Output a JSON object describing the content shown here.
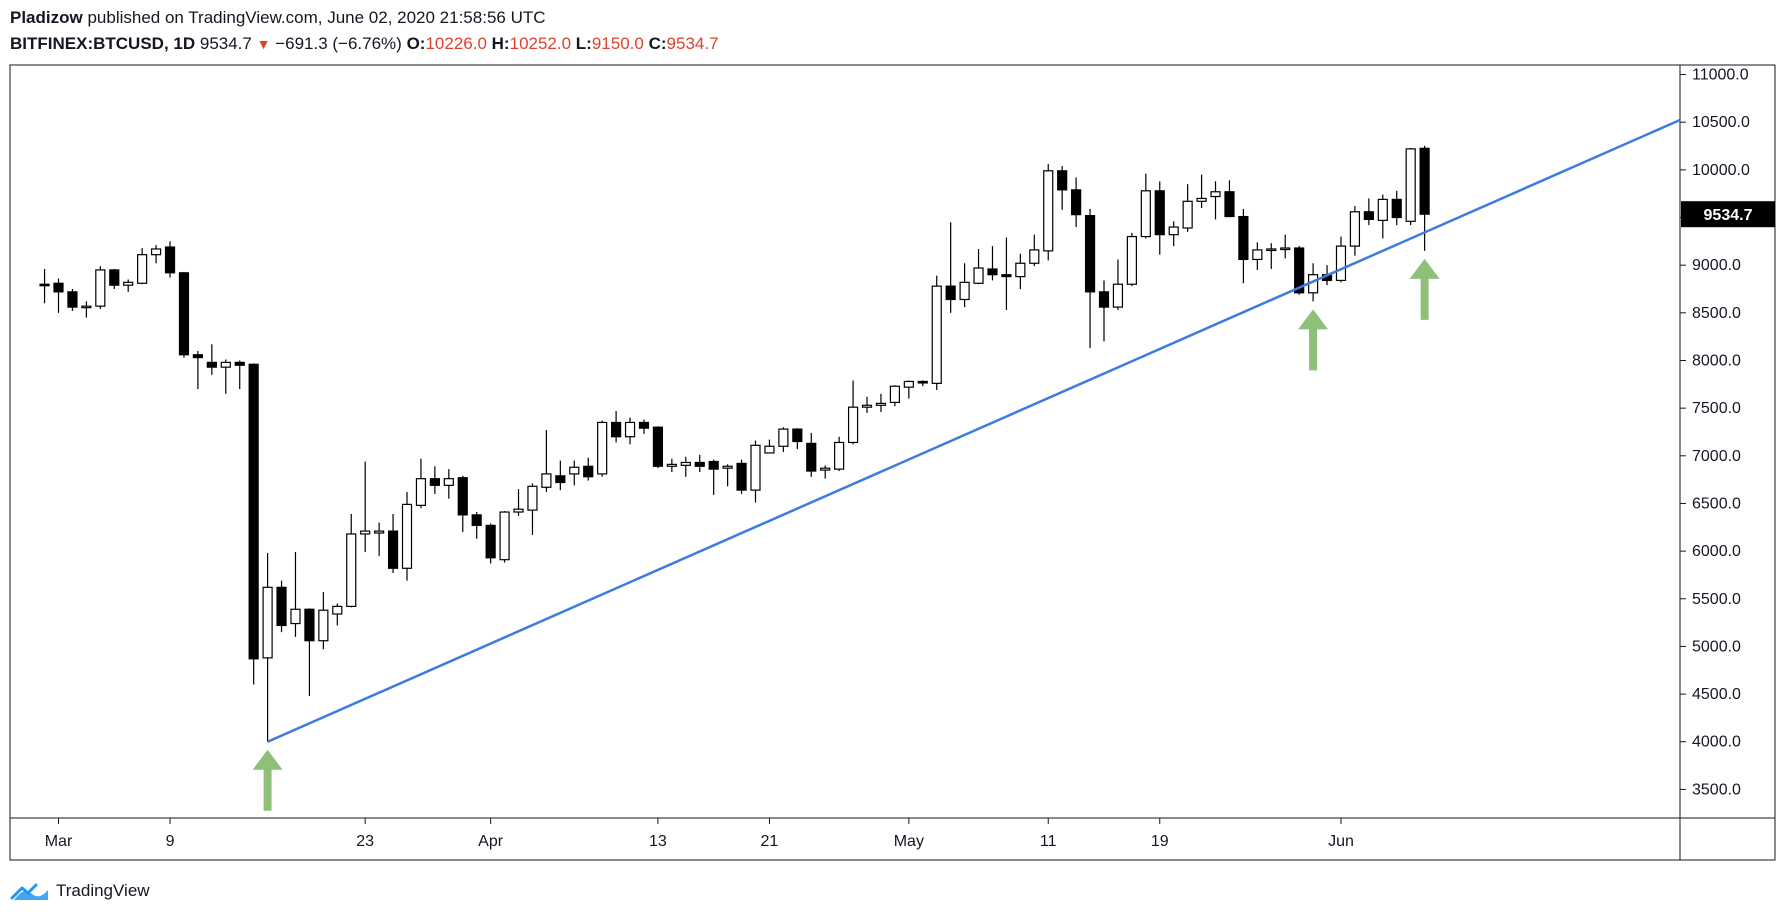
{
  "header": {
    "author": "Pladizow",
    "published_text": "published on TradingView.com, June 02, 2020 21:58:56 UTC",
    "symbol": "BITFINEX:BTCUSD, 1D",
    "last": "9534.7",
    "change_arrow": "▼",
    "change": "−691.3 (−6.76%)",
    "open_label": "O:",
    "open": "10226.0",
    "high_label": "H:",
    "high": "10252.0",
    "low_label": "L:",
    "low": "9150.0",
    "close_label": "C:",
    "close": "9534.7"
  },
  "footer": {
    "brand": "TradingView",
    "logo_icon": "tradingview-logo-icon"
  },
  "colors": {
    "up_body": "#ffffff",
    "down_body": "#000000",
    "wick": "#000000",
    "trendline": "#3c7be0",
    "arrow": "#8ec07a",
    "price_tag_bg": "#000000"
  },
  "chart_data": {
    "type": "candlestick",
    "symbol": "BITFINEX:BTCUSD",
    "interval": "1D",
    "ylim": [
      3200,
      11100
    ],
    "y_axis_position": "right",
    "y_ticks": [
      "11000.0",
      "10500.0",
      "10000.0",
      "9500.0",
      "9000.0",
      "8500.0",
      "8000.0",
      "7500.0",
      "7000.0",
      "6500.0",
      "6000.0",
      "5500.0",
      "5000.0",
      "4500.0",
      "4000.0",
      "3500.0"
    ],
    "x_labels": [
      {
        "label": "Mar",
        "date": "2020-03-01"
      },
      {
        "label": "9",
        "date": "2020-03-09"
      },
      {
        "label": "23",
        "date": "2020-03-23"
      },
      {
        "label": "Apr",
        "date": "2020-04-01"
      },
      {
        "label": "13",
        "date": "2020-04-13"
      },
      {
        "label": "21",
        "date": "2020-04-21"
      },
      {
        "label": "May",
        "date": "2020-05-01"
      },
      {
        "label": "11",
        "date": "2020-05-11"
      },
      {
        "label": "19",
        "date": "2020-05-19"
      },
      {
        "label": "Jun",
        "date": "2020-06-01"
      }
    ],
    "last_price_label": "9534.7",
    "candles": [
      {
        "date": "2020-02-29",
        "o": 8800,
        "h": 8960,
        "l": 8600,
        "c": 8790
      },
      {
        "date": "2020-03-01",
        "o": 8810,
        "h": 8860,
        "l": 8500,
        "c": 8720
      },
      {
        "date": "2020-03-02",
        "o": 8720,
        "h": 8750,
        "l": 8520,
        "c": 8560
      },
      {
        "date": "2020-03-03",
        "o": 8560,
        "h": 8620,
        "l": 8450,
        "c": 8570
      },
      {
        "date": "2020-03-04",
        "o": 8570,
        "h": 8990,
        "l": 8540,
        "c": 8950
      },
      {
        "date": "2020-03-05",
        "o": 8950,
        "h": 8960,
        "l": 8750,
        "c": 8790
      },
      {
        "date": "2020-03-06",
        "o": 8790,
        "h": 8850,
        "l": 8720,
        "c": 8820
      },
      {
        "date": "2020-03-07",
        "o": 8810,
        "h": 9180,
        "l": 8800,
        "c": 9110
      },
      {
        "date": "2020-03-08",
        "o": 9110,
        "h": 9210,
        "l": 9020,
        "c": 9170
      },
      {
        "date": "2020-03-09",
        "o": 9190,
        "h": 9250,
        "l": 8870,
        "c": 8920
      },
      {
        "date": "2020-03-10",
        "o": 8920,
        "h": 8930,
        "l": 8030,
        "c": 8060
      },
      {
        "date": "2020-03-11",
        "o": 8060,
        "h": 8100,
        "l": 7700,
        "c": 8030
      },
      {
        "date": "2020-03-12",
        "o": 7980,
        "h": 8170,
        "l": 7850,
        "c": 7930
      },
      {
        "date": "2020-03-13",
        "o": 7930,
        "h": 8010,
        "l": 7650,
        "c": 7980
      },
      {
        "date": "2020-03-14",
        "o": 7980,
        "h": 8000,
        "l": 7700,
        "c": 7950
      },
      {
        "date": "2020-03-15",
        "o": 7960,
        "h": 7970,
        "l": 4600,
        "c": 4870
      },
      {
        "date": "2020-03-16",
        "o": 4880,
        "h": 5980,
        "l": 4000,
        "c": 5620
      },
      {
        "date": "2020-03-17",
        "o": 5620,
        "h": 5690,
        "l": 5150,
        "c": 5220
      },
      {
        "date": "2020-03-18",
        "o": 5240,
        "h": 5990,
        "l": 5100,
        "c": 5390
      },
      {
        "date": "2020-03-19",
        "o": 5390,
        "h": 5400,
        "l": 4480,
        "c": 5060
      },
      {
        "date": "2020-03-20",
        "o": 5060,
        "h": 5570,
        "l": 4970,
        "c": 5380
      },
      {
        "date": "2020-03-21",
        "o": 5340,
        "h": 5450,
        "l": 5220,
        "c": 5420
      },
      {
        "date": "2020-03-22",
        "o": 5420,
        "h": 6390,
        "l": 5410,
        "c": 6180
      },
      {
        "date": "2020-03-23",
        "o": 6180,
        "h": 6940,
        "l": 5990,
        "c": 6210
      },
      {
        "date": "2020-03-24",
        "o": 6190,
        "h": 6300,
        "l": 5950,
        "c": 6210
      },
      {
        "date": "2020-03-25",
        "o": 6210,
        "h": 6390,
        "l": 5770,
        "c": 5820
      },
      {
        "date": "2020-03-26",
        "o": 5820,
        "h": 6620,
        "l": 5690,
        "c": 6490
      },
      {
        "date": "2020-03-27",
        "o": 6480,
        "h": 6970,
        "l": 6450,
        "c": 6760
      },
      {
        "date": "2020-03-28",
        "o": 6760,
        "h": 6890,
        "l": 6600,
        "c": 6690
      },
      {
        "date": "2020-03-29",
        "o": 6690,
        "h": 6860,
        "l": 6550,
        "c": 6760
      },
      {
        "date": "2020-03-30",
        "o": 6770,
        "h": 6790,
        "l": 6200,
        "c": 6380
      },
      {
        "date": "2020-03-31",
        "o": 6380,
        "h": 6410,
        "l": 6130,
        "c": 6270
      },
      {
        "date": "2020-04-01",
        "o": 6270,
        "h": 6290,
        "l": 5870,
        "c": 5930
      },
      {
        "date": "2020-04-02",
        "o": 5910,
        "h": 6420,
        "l": 5880,
        "c": 6410
      },
      {
        "date": "2020-04-03",
        "o": 6410,
        "h": 6650,
        "l": 6370,
        "c": 6440
      },
      {
        "date": "2020-04-04",
        "o": 6430,
        "h": 6710,
        "l": 6170,
        "c": 6680
      },
      {
        "date": "2020-04-05",
        "o": 6670,
        "h": 7270,
        "l": 6620,
        "c": 6810
      },
      {
        "date": "2020-04-06",
        "o": 6790,
        "h": 6950,
        "l": 6640,
        "c": 6720
      },
      {
        "date": "2020-04-07",
        "o": 6810,
        "h": 6950,
        "l": 6690,
        "c": 6880
      },
      {
        "date": "2020-04-08",
        "o": 6890,
        "h": 6980,
        "l": 6740,
        "c": 6780
      },
      {
        "date": "2020-04-09",
        "o": 6810,
        "h": 7370,
        "l": 6780,
        "c": 7350
      },
      {
        "date": "2020-04-10",
        "o": 7350,
        "h": 7470,
        "l": 7140,
        "c": 7200
      },
      {
        "date": "2020-04-11",
        "o": 7200,
        "h": 7400,
        "l": 7120,
        "c": 7350
      },
      {
        "date": "2020-04-12",
        "o": 7350,
        "h": 7380,
        "l": 7230,
        "c": 7290
      },
      {
        "date": "2020-04-13",
        "o": 7300,
        "h": 7310,
        "l": 6870,
        "c": 6890
      },
      {
        "date": "2020-04-14",
        "o": 6890,
        "h": 6970,
        "l": 6830,
        "c": 6910
      },
      {
        "date": "2020-04-15",
        "o": 6900,
        "h": 6990,
        "l": 6780,
        "c": 6930
      },
      {
        "date": "2020-04-16",
        "o": 6930,
        "h": 7010,
        "l": 6830,
        "c": 6890
      },
      {
        "date": "2020-04-17",
        "o": 6940,
        "h": 6960,
        "l": 6590,
        "c": 6860
      },
      {
        "date": "2020-04-18",
        "o": 6870,
        "h": 6910,
        "l": 6680,
        "c": 6890
      },
      {
        "date": "2020-04-19",
        "o": 6920,
        "h": 6960,
        "l": 6600,
        "c": 6640
      },
      {
        "date": "2020-04-20",
        "o": 6640,
        "h": 7160,
        "l": 6510,
        "c": 7110
      },
      {
        "date": "2020-04-21",
        "o": 7030,
        "h": 7170,
        "l": 7030,
        "c": 7100
      },
      {
        "date": "2020-04-22",
        "o": 7100,
        "h": 7300,
        "l": 7040,
        "c": 7280
      },
      {
        "date": "2020-04-23",
        "o": 7280,
        "h": 7290,
        "l": 7070,
        "c": 7150
      },
      {
        "date": "2020-04-24",
        "o": 7130,
        "h": 7240,
        "l": 6780,
        "c": 6840
      },
      {
        "date": "2020-04-25",
        "o": 6850,
        "h": 6900,
        "l": 6760,
        "c": 6870
      },
      {
        "date": "2020-04-26",
        "o": 6860,
        "h": 7200,
        "l": 6840,
        "c": 7140
      },
      {
        "date": "2020-04-27",
        "o": 7140,
        "h": 7790,
        "l": 7120,
        "c": 7510
      },
      {
        "date": "2020-04-28",
        "o": 7510,
        "h": 7620,
        "l": 7450,
        "c": 7530
      },
      {
        "date": "2020-04-29",
        "o": 7530,
        "h": 7650,
        "l": 7460,
        "c": 7550
      },
      {
        "date": "2020-04-30",
        "o": 7560,
        "h": 7740,
        "l": 7520,
        "c": 7730
      },
      {
        "date": "2020-05-01",
        "o": 7720,
        "h": 7790,
        "l": 7600,
        "c": 7780
      },
      {
        "date": "2020-05-02",
        "o": 7780,
        "h": 7790,
        "l": 7730,
        "c": 7770
      },
      {
        "date": "2020-05-03",
        "o": 7760,
        "h": 8890,
        "l": 7690,
        "c": 8780
      },
      {
        "date": "2020-05-04",
        "o": 8780,
        "h": 9450,
        "l": 8500,
        "c": 8640
      },
      {
        "date": "2020-05-05",
        "o": 8640,
        "h": 9020,
        "l": 8560,
        "c": 8820
      },
      {
        "date": "2020-05-06",
        "o": 8810,
        "h": 9170,
        "l": 8800,
        "c": 8970
      },
      {
        "date": "2020-05-07",
        "o": 8960,
        "h": 9200,
        "l": 8840,
        "c": 8900
      },
      {
        "date": "2020-05-08",
        "o": 8900,
        "h": 9290,
        "l": 8530,
        "c": 8880
      },
      {
        "date": "2020-05-09",
        "o": 8880,
        "h": 9120,
        "l": 8750,
        "c": 9020
      },
      {
        "date": "2020-05-10",
        "o": 9020,
        "h": 9320,
        "l": 8990,
        "c": 9160
      },
      {
        "date": "2020-05-11",
        "o": 9150,
        "h": 10060,
        "l": 9050,
        "c": 9990
      },
      {
        "date": "2020-05-12",
        "o": 9990,
        "h": 10040,
        "l": 9580,
        "c": 9790
      },
      {
        "date": "2020-05-13",
        "o": 9790,
        "h": 9920,
        "l": 9400,
        "c": 9530
      },
      {
        "date": "2020-05-14",
        "o": 9520,
        "h": 9590,
        "l": 8130,
        "c": 8720
      },
      {
        "date": "2020-05-15",
        "o": 8720,
        "h": 8840,
        "l": 8200,
        "c": 8560
      },
      {
        "date": "2020-05-16",
        "o": 8560,
        "h": 9060,
        "l": 8530,
        "c": 8800
      },
      {
        "date": "2020-05-17",
        "o": 8800,
        "h": 9340,
        "l": 8780,
        "c": 9300
      },
      {
        "date": "2020-05-18",
        "o": 9300,
        "h": 9960,
        "l": 9280,
        "c": 9780
      },
      {
        "date": "2020-05-19",
        "o": 9780,
        "h": 9880,
        "l": 9110,
        "c": 9320
      },
      {
        "date": "2020-05-20",
        "o": 9320,
        "h": 9460,
        "l": 9200,
        "c": 9400
      },
      {
        "date": "2020-05-21",
        "o": 9390,
        "h": 9850,
        "l": 9350,
        "c": 9670
      },
      {
        "date": "2020-05-22",
        "o": 9670,
        "h": 9950,
        "l": 9600,
        "c": 9700
      },
      {
        "date": "2020-05-23",
        "o": 9720,
        "h": 9880,
        "l": 9480,
        "c": 9770
      },
      {
        "date": "2020-05-24",
        "o": 9770,
        "h": 9890,
        "l": 9530,
        "c": 9510
      },
      {
        "date": "2020-05-25",
        "o": 9510,
        "h": 9590,
        "l": 8810,
        "c": 9060
      },
      {
        "date": "2020-05-26",
        "o": 9060,
        "h": 9240,
        "l": 8950,
        "c": 9160
      },
      {
        "date": "2020-05-27",
        "o": 9160,
        "h": 9230,
        "l": 8960,
        "c": 9170
      },
      {
        "date": "2020-05-28",
        "o": 9170,
        "h": 9320,
        "l": 9070,
        "c": 9180
      },
      {
        "date": "2020-05-29",
        "o": 9180,
        "h": 9200,
        "l": 8690,
        "c": 8710
      },
      {
        "date": "2020-05-30",
        "o": 8710,
        "h": 9020,
        "l": 8620,
        "c": 8900
      },
      {
        "date": "2020-05-31",
        "o": 8900,
        "h": 9000,
        "l": 8790,
        "c": 8840
      },
      {
        "date": "2020-06-01",
        "o": 8840,
        "h": 9300,
        "l": 8820,
        "c": 9200
      },
      {
        "date": "2020-06-02",
        "o": 9200,
        "h": 9620,
        "l": 9100,
        "c": 9560
      },
      {
        "date": "2020-06-03",
        "o": 9560,
        "h": 9700,
        "l": 9420,
        "c": 9480
      },
      {
        "date": "2020-06-04",
        "o": 9470,
        "h": 9740,
        "l": 9280,
        "c": 9690
      },
      {
        "date": "2020-06-05",
        "o": 9690,
        "h": 9780,
        "l": 9420,
        "c": 9500
      },
      {
        "date": "2020-06-06",
        "o": 9460,
        "h": 10230,
        "l": 9420,
        "c": 10220
      },
      {
        "date": "2020-06-07",
        "o": 10226.0,
        "h": 10252.0,
        "l": 9150.0,
        "c": 9534.7
      }
    ],
    "trendline": {
      "from": {
        "date": "2020-03-16",
        "price": 4000
      },
      "to": {
        "date": "2020-06-13",
        "price": 9730
      },
      "style": "solid",
      "extends": "right"
    },
    "annotations": [
      {
        "type": "up-arrow",
        "date": "2020-03-16",
        "price": 4000
      },
      {
        "type": "up-arrow",
        "date": "2020-05-30",
        "price": 8620
      },
      {
        "type": "up-arrow",
        "date": "2020-06-07",
        "price": 9150
      }
    ]
  }
}
